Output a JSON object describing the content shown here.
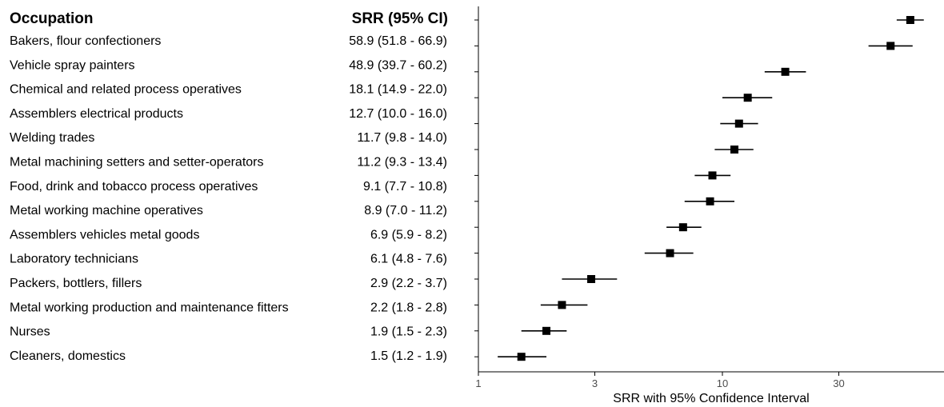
{
  "chart_data": {
    "type": "forest",
    "headers": {
      "occupation": "Occupation",
      "estimate": "SRR (95% CI)"
    },
    "xlabel": "SRR with 95% Confidence Interval",
    "x_scale": "log",
    "xlim": [
      1,
      90
    ],
    "x_ticks": [
      1,
      3,
      10,
      30
    ],
    "x_tick_labels": [
      "1",
      "3",
      "10",
      "30"
    ],
    "grid": false,
    "rows": [
      {
        "occupation": "Bakers, flour confectioners",
        "label": "58.9 (51.8 - 66.9)",
        "srr": 58.9,
        "lo": 51.8,
        "hi": 66.9
      },
      {
        "occupation": "Vehicle spray painters",
        "label": "48.9 (39.7 - 60.2)",
        "srr": 48.9,
        "lo": 39.7,
        "hi": 60.2
      },
      {
        "occupation": "Chemical and related process operatives",
        "label": "18.1 (14.9 - 22.0)",
        "srr": 18.1,
        "lo": 14.9,
        "hi": 22.0
      },
      {
        "occupation": "Assemblers electrical products",
        "label": "12.7 (10.0 - 16.0)",
        "srr": 12.7,
        "lo": 10.0,
        "hi": 16.0
      },
      {
        "occupation": "Welding trades",
        "label": "11.7 (9.8 - 14.0)",
        "srr": 11.7,
        "lo": 9.8,
        "hi": 14.0
      },
      {
        "occupation": "Metal machining setters and setter-operators",
        "label": "11.2 (9.3 - 13.4)",
        "srr": 11.2,
        "lo": 9.3,
        "hi": 13.4
      },
      {
        "occupation": "Food, drink and tobacco process operatives",
        "label": "9.1 (7.7 - 10.8)",
        "srr": 9.1,
        "lo": 7.7,
        "hi": 10.8
      },
      {
        "occupation": "Metal working machine operatives",
        "label": "8.9 (7.0 - 11.2)",
        "srr": 8.9,
        "lo": 7.0,
        "hi": 11.2
      },
      {
        "occupation": "Assemblers vehicles metal goods",
        "label": "6.9 (5.9 - 8.2)",
        "srr": 6.9,
        "lo": 5.9,
        "hi": 8.2
      },
      {
        "occupation": "Laboratory technicians",
        "label": "6.1 (4.8 - 7.6)",
        "srr": 6.1,
        "lo": 4.8,
        "hi": 7.6
      },
      {
        "occupation": "Packers, bottlers, fillers",
        "label": "2.9 (2.2 - 3.7)",
        "srr": 2.9,
        "lo": 2.2,
        "hi": 3.7
      },
      {
        "occupation": "Metal working production and maintenance fitters",
        "label": "2.2 (1.8 - 2.8)",
        "srr": 2.2,
        "lo": 1.8,
        "hi": 2.8
      },
      {
        "occupation": "Nurses",
        "label": "1.9 (1.5 - 2.3)",
        "srr": 1.9,
        "lo": 1.5,
        "hi": 2.3
      },
      {
        "occupation": "Cleaners, domestics",
        "label": "1.5 (1.2 - 1.9)",
        "srr": 1.5,
        "lo": 1.2,
        "hi": 1.9
      }
    ]
  }
}
